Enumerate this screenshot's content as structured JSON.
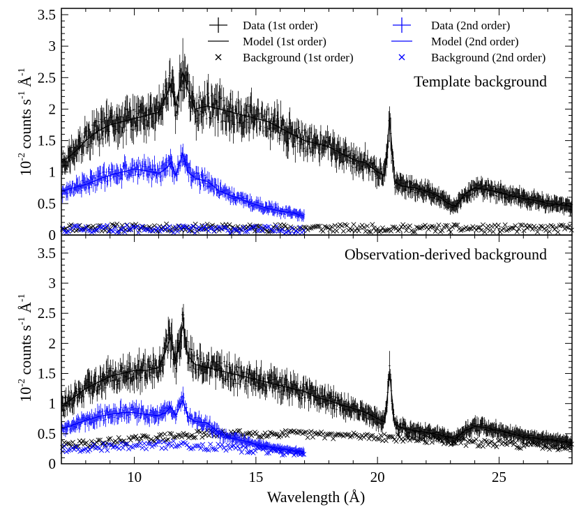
{
  "chart_data": [
    {
      "type": "scatter",
      "panel": "top",
      "annotation": "Template background",
      "xlim": [
        7,
        28
      ],
      "ylim": [
        0,
        3.6
      ],
      "yticks": [
        0,
        0.5,
        1,
        1.5,
        2,
        2.5,
        3,
        3.5
      ],
      "ytick_labels": [
        "0",
        "0.5",
        "1",
        "1.5",
        "2",
        "2.5",
        "3",
        "3.5"
      ],
      "ylabel": {
        "pre": "10",
        "sup1": "-2",
        "mid": " counts s",
        "sup2": "-1",
        "mid2": " Å",
        "sup3": "-1"
      },
      "legend": [
        {
          "label": "Data (1st order)",
          "symbol": "cross",
          "color": "#000000"
        },
        {
          "label": "Model (1st order)",
          "symbol": "line",
          "color": "#000000"
        },
        {
          "label": "Background (1st order)",
          "symbol": "x",
          "color": "#000000"
        },
        {
          "label": "Data (2nd order)",
          "symbol": "cross",
          "color": "#0000ff"
        },
        {
          "label": "Model (2nd order)",
          "symbol": "line",
          "color": "#0000ff"
        },
        {
          "label": "Background (2nd order)",
          "symbol": "x",
          "color": "#0000ff"
        }
      ],
      "series": [
        {
          "name": "Model (1st order)",
          "color": "#000000",
          "kind": "line",
          "x": [
            7.0,
            7.5,
            8.0,
            8.5,
            9.0,
            9.5,
            10.0,
            10.5,
            11.0,
            11.3,
            11.5,
            11.7,
            12.0,
            12.2,
            12.5,
            13.0,
            13.5,
            14.0,
            14.5,
            15.0,
            15.5,
            16.0,
            16.5,
            17.0,
            17.5,
            18.0,
            18.5,
            19.0,
            19.5,
            20.0,
            20.3,
            20.5,
            20.7,
            21.0,
            21.5,
            22.0,
            22.5,
            22.9,
            23.2,
            23.6,
            24.0,
            24.5,
            25.0,
            25.5,
            26.0,
            26.5,
            27.0,
            27.5,
            28.0
          ],
          "y": [
            1.15,
            1.3,
            1.5,
            1.65,
            1.75,
            1.8,
            1.85,
            1.9,
            1.95,
            2.2,
            2.4,
            2.05,
            2.6,
            2.3,
            2.0,
            2.05,
            2.0,
            1.95,
            1.9,
            1.85,
            1.8,
            1.7,
            1.6,
            1.5,
            1.45,
            1.4,
            1.3,
            1.2,
            1.15,
            1.0,
            0.95,
            1.85,
            0.85,
            0.78,
            0.75,
            0.7,
            0.62,
            0.5,
            0.45,
            0.65,
            0.75,
            0.72,
            0.68,
            0.62,
            0.58,
            0.55,
            0.5,
            0.48,
            0.45
          ]
        },
        {
          "name": "Model (2nd order)",
          "color": "#0000ff",
          "kind": "line",
          "x": [
            7.0,
            7.5,
            8.0,
            8.5,
            9.0,
            9.5,
            10.0,
            10.5,
            11.0,
            11.3,
            11.5,
            11.7,
            12.0,
            12.2,
            12.5,
            13.0,
            13.5,
            14.0,
            14.5,
            15.0,
            15.5,
            16.0,
            16.5,
            17.0
          ],
          "y": [
            0.7,
            0.75,
            0.8,
            0.88,
            0.95,
            1.0,
            1.05,
            1.02,
            0.98,
            1.05,
            1.15,
            0.95,
            1.3,
            1.0,
            0.9,
            0.85,
            0.7,
            0.62,
            0.55,
            0.48,
            0.42,
            0.38,
            0.35,
            0.3
          ]
        },
        {
          "name": "Background (1st order)",
          "color": "#000000",
          "kind": "x",
          "x": [
            7,
            28
          ],
          "y": [
            0.12,
            0.1
          ]
        },
        {
          "name": "Background (2nd order)",
          "color": "#0000ff",
          "kind": "x",
          "x": [
            7,
            17
          ],
          "y": [
            0.1,
            0.08
          ]
        }
      ]
    },
    {
      "type": "scatter",
      "panel": "bottom",
      "annotation": "Observation-derived background",
      "xlim": [
        7,
        28
      ],
      "ylim": [
        0,
        3.8
      ],
      "yticks": [
        0,
        0.5,
        1,
        1.5,
        2,
        2.5,
        3,
        3.5
      ],
      "ytick_labels": [
        "0",
        "0.5",
        "1",
        "1.5",
        "2",
        "2.5",
        "3",
        "3.5"
      ],
      "xticks": [
        10,
        15,
        20,
        25
      ],
      "xtick_labels": [
        "10",
        "15",
        "20",
        "25"
      ],
      "xlabel": "Wavelength (Å)",
      "ylabel": {
        "pre": "10",
        "sup1": "-2",
        "mid": " counts s",
        "sup2": "-1",
        "mid2": " Å",
        "sup3": "-1"
      },
      "series": [
        {
          "name": "Model (1st order)",
          "color": "#000000",
          "kind": "line",
          "x": [
            7.0,
            7.5,
            8.0,
            8.5,
            9.0,
            9.5,
            10.0,
            10.5,
            11.0,
            11.3,
            11.5,
            11.7,
            12.0,
            12.2,
            12.5,
            13.0,
            13.5,
            14.0,
            14.5,
            15.0,
            15.5,
            16.0,
            16.5,
            17.0,
            17.5,
            18.0,
            18.5,
            19.0,
            19.5,
            20.0,
            20.3,
            20.5,
            20.7,
            21.0,
            21.5,
            22.0,
            22.5,
            22.9,
            23.2,
            23.6,
            24.0,
            24.5,
            25.0,
            25.5,
            26.0,
            26.5,
            27.0,
            27.5,
            28.0
          ],
          "y": [
            0.95,
            1.1,
            1.25,
            1.35,
            1.45,
            1.5,
            1.55,
            1.55,
            1.6,
            1.9,
            2.1,
            1.7,
            2.3,
            1.8,
            1.65,
            1.6,
            1.55,
            1.5,
            1.45,
            1.4,
            1.35,
            1.3,
            1.25,
            1.2,
            1.1,
            1.05,
            0.98,
            0.92,
            0.85,
            0.75,
            0.7,
            1.5,
            0.65,
            0.6,
            0.55,
            0.52,
            0.48,
            0.45,
            0.42,
            0.55,
            0.62,
            0.6,
            0.55,
            0.5,
            0.45,
            0.42,
            0.4,
            0.38,
            0.35
          ]
        },
        {
          "name": "Model (2nd order)",
          "color": "#0000ff",
          "kind": "line",
          "x": [
            7.0,
            7.5,
            8.0,
            8.5,
            9.0,
            9.5,
            10.0,
            10.5,
            11.0,
            11.3,
            11.5,
            11.7,
            12.0,
            12.2,
            12.5,
            13.0,
            13.5,
            14.0,
            14.5,
            15.0,
            15.5,
            16.0,
            16.5,
            17.0
          ],
          "y": [
            0.58,
            0.65,
            0.72,
            0.78,
            0.82,
            0.85,
            0.85,
            0.82,
            0.8,
            0.85,
            0.95,
            0.8,
            1.05,
            0.78,
            0.7,
            0.68,
            0.5,
            0.42,
            0.38,
            0.32,
            0.28,
            0.25,
            0.22,
            0.2
          ]
        },
        {
          "name": "Background (1st order)",
          "color": "#000000",
          "kind": "x",
          "x": [
            7,
            10,
            13,
            16,
            20,
            24,
            28
          ],
          "y": [
            0.3,
            0.4,
            0.5,
            0.5,
            0.45,
            0.35,
            0.28
          ]
        },
        {
          "name": "Background (2nd order)",
          "color": "#0000ff",
          "kind": "x",
          "x": [
            7,
            10,
            12,
            14,
            17
          ],
          "y": [
            0.25,
            0.3,
            0.32,
            0.25,
            0.18
          ]
        }
      ]
    }
  ]
}
